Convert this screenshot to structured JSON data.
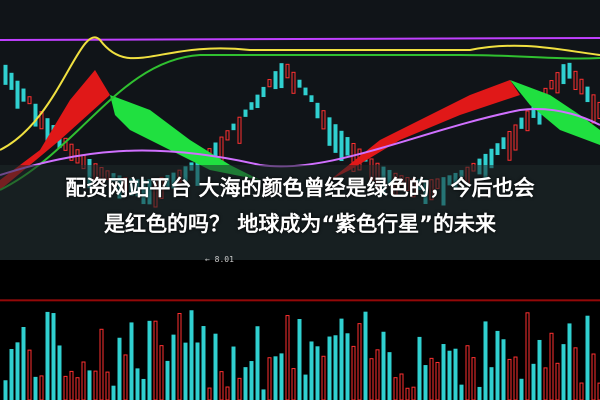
{
  "headline": {
    "line1": "配资网站平台 大海的颜色曾经是绿色的，今后也会",
    "line2": "是红色的吗？ 地球成为“紫色行星”的未来"
  },
  "chart": {
    "price_label": "← 8.01",
    "colors": {
      "up": "#ff3030",
      "down": "#30d0d0",
      "ribbon_up": "#e01818",
      "ribbon_down": "#20e040",
      "ma_yellow": "#f0e040",
      "ma_purple": "#c040ff",
      "ma_green": "#30c030"
    }
  }
}
